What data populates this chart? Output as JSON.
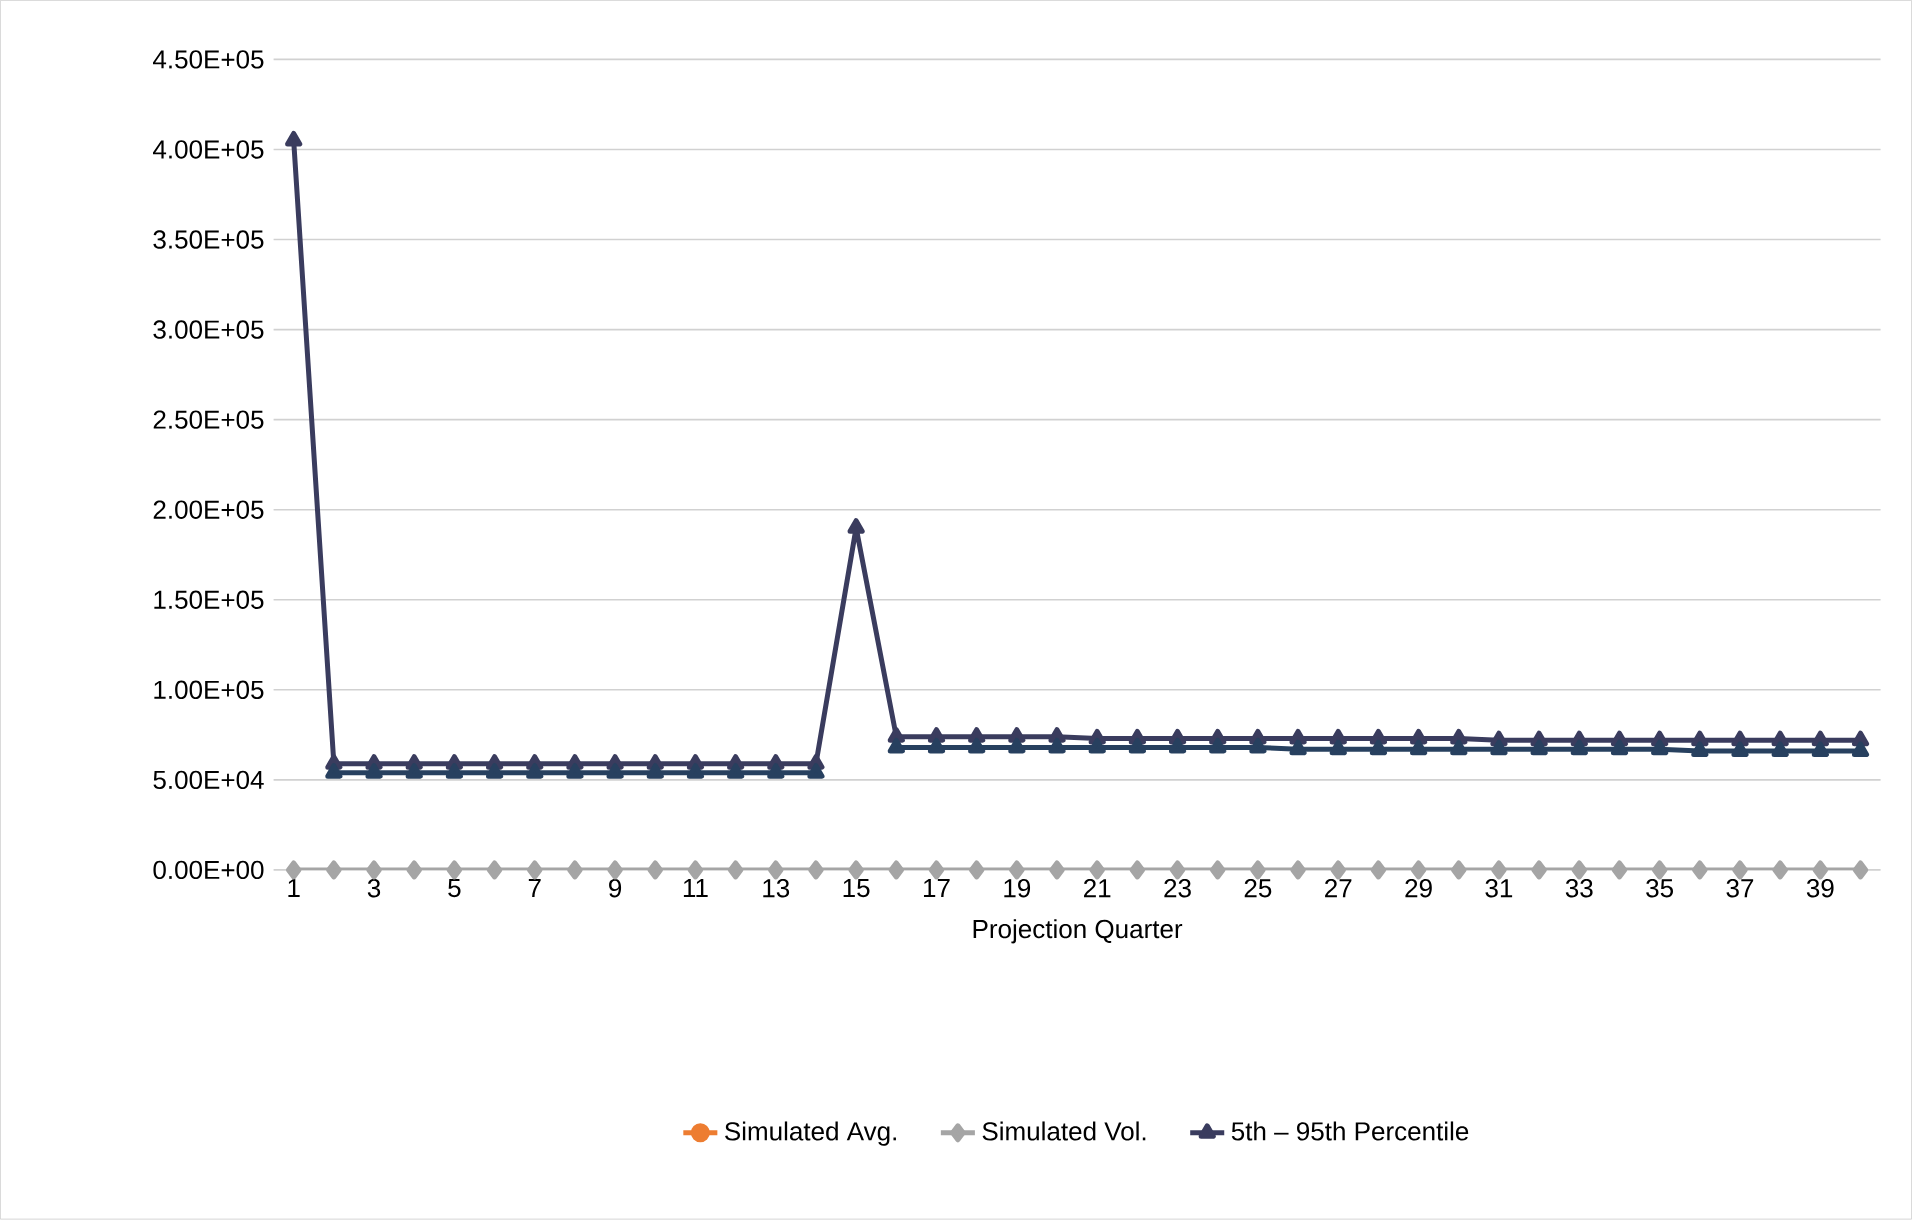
{
  "chart_data": {
    "type": "line",
    "xlabel": "Projection Quarter",
    "categories": [
      "1",
      null,
      "3",
      null,
      "5",
      null,
      "7",
      null,
      "9",
      null,
      "11",
      null,
      "13",
      null,
      "15",
      null,
      "17",
      null,
      "19",
      null,
      "21",
      null,
      "23",
      null,
      "25",
      null,
      "27",
      null,
      "29",
      null,
      "31",
      null,
      "33",
      null,
      "35",
      null,
      "37",
      null,
      "39",
      null
    ],
    "ylim": [
      0,
      450000
    ],
    "yticks": [
      {
        "value": 0,
        "label": "0.00E+00"
      },
      {
        "value": 50000,
        "label": "5.00E+04"
      },
      {
        "value": 100000,
        "label": "1.00E+05"
      },
      {
        "value": 150000,
        "label": "1.50E+05"
      },
      {
        "value": 200000,
        "label": "2.00E+05"
      },
      {
        "value": 250000,
        "label": "2.50E+05"
      },
      {
        "value": 300000,
        "label": "3.00E+05"
      },
      {
        "value": 350000,
        "label": "3.50E+05"
      },
      {
        "value": 400000,
        "label": "4.00E+05"
      },
      {
        "value": 450000,
        "label": "4.50E+05"
      }
    ],
    "grid": "y",
    "legend": "bottom",
    "series": [
      {
        "name": "Simulated Avg.",
        "color": "#ed7d31",
        "marker": "circle",
        "values": [
          null,
          null,
          null,
          null,
          null,
          null,
          null,
          null,
          null,
          null,
          null,
          null,
          null,
          null,
          null,
          null,
          null,
          null,
          null,
          null,
          null,
          null,
          null,
          null,
          null,
          null,
          null,
          null,
          null,
          null,
          null,
          null,
          null,
          null,
          null,
          null,
          null,
          null,
          null,
          null
        ]
      },
      {
        "name": "Simulated Vol.",
        "color": "#a5a5a5",
        "marker": "diamond",
        "values": [
          0,
          0,
          0,
          0,
          0,
          0,
          0,
          0,
          0,
          0,
          0,
          0,
          0,
          0,
          0,
          0,
          0,
          0,
          0,
          0,
          0,
          0,
          0,
          0,
          0,
          0,
          0,
          0,
          0,
          0,
          0,
          0,
          0,
          0,
          0,
          0,
          0,
          0,
          0,
          0
        ]
      },
      {
        "name": "5th – 95th Percentile",
        "color": "#3a3c5e",
        "marker": "triangle",
        "values": [
          405000,
          59000,
          59000,
          59000,
          59000,
          59000,
          59000,
          59000,
          59000,
          59000,
          59000,
          59000,
          59000,
          59000,
          190000,
          74000,
          74000,
          74000,
          74000,
          74000,
          73000,
          73000,
          73000,
          73000,
          73000,
          73000,
          73000,
          73000,
          73000,
          73000,
          72000,
          72000,
          72000,
          72000,
          72000,
          72000,
          72000,
          72000,
          72000,
          72000
        ]
      },
      {
        "color": "#27405f",
        "marker": "triangle",
        "values": [
          null,
          54000,
          54000,
          54000,
          54000,
          54000,
          54000,
          54000,
          54000,
          54000,
          54000,
          54000,
          54000,
          54000,
          null,
          68000,
          68000,
          68000,
          68000,
          68000,
          68000,
          68000,
          68000,
          68000,
          68000,
          67000,
          67000,
          67000,
          67000,
          67000,
          67000,
          67000,
          67000,
          67000,
          67000,
          66000,
          66000,
          66000,
          66000,
          66000
        ]
      }
    ]
  }
}
